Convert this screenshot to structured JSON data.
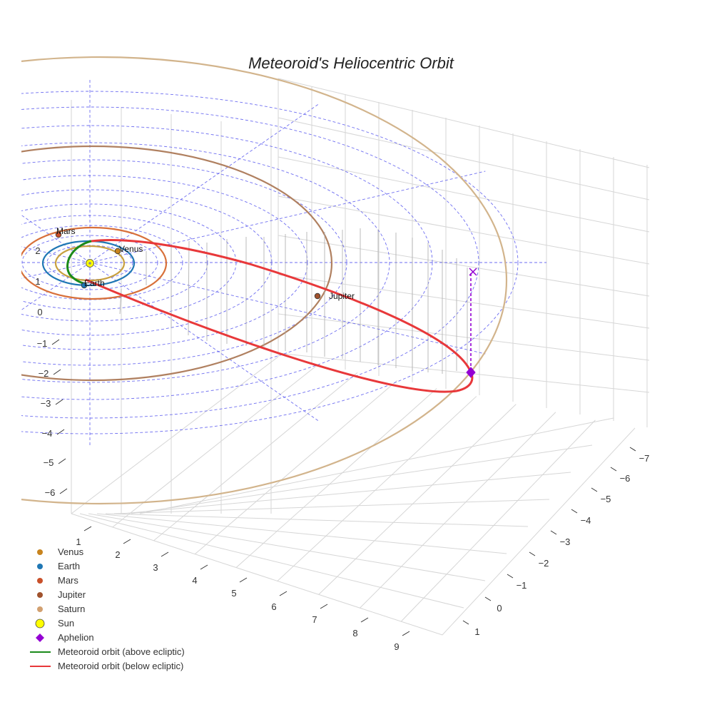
{
  "chart_data": {
    "type": "scatter",
    "title": "Meteoroid's Heliocentric Orbit",
    "xlabel": "",
    "ylabel": "",
    "zlabel": "",
    "x_ticks": [
      "1",
      "2",
      "3",
      "4",
      "5",
      "6",
      "7",
      "8",
      "9"
    ],
    "y_ticks": [
      "1",
      "0",
      "−1",
      "−2",
      "−3",
      "−4",
      "−5",
      "−6",
      "−7"
    ],
    "z_ticks": [
      "2",
      "1",
      "0",
      "−1",
      "−2",
      "−3",
      "−4",
      "−5",
      "−6"
    ],
    "grid": true,
    "legend_position": "bottom-left",
    "planet_labels": [
      "Mars",
      "Venus",
      "Earth",
      "Jupiter"
    ],
    "legend": [
      {
        "label": "Venus",
        "marker": "circle",
        "color": "#c8841e"
      },
      {
        "label": "Earth",
        "marker": "circle",
        "color": "#1f77b4"
      },
      {
        "label": "Mars",
        "marker": "circle",
        "color": "#c9502a"
      },
      {
        "label": "Jupiter",
        "marker": "circle",
        "color": "#a0522d"
      },
      {
        "label": "Saturn",
        "marker": "circle",
        "color": "#d2a070"
      },
      {
        "label": "Sun",
        "marker": "circle",
        "color": "#ffff00"
      },
      {
        "label": "Aphelion",
        "marker": "diamond",
        "color": "#9400d3"
      },
      {
        "label": "Meteoroid orbit (above ecliptic)",
        "marker": "line",
        "color": "#1a8a1a"
      },
      {
        "label": "Meteoroid orbit (below ecliptic)",
        "marker": "line",
        "color": "#e8383a"
      }
    ],
    "colors": {
      "venus": "#c8a040",
      "earth": "#1f77b4",
      "mars": "#d8703a",
      "jupiter": "#b08060",
      "saturn": "#d2b48c",
      "above": "#1a8a1a",
      "below": "#e8383a",
      "aphelion": "#9400d3",
      "ecliptic_grid": "#5555ee"
    }
  }
}
